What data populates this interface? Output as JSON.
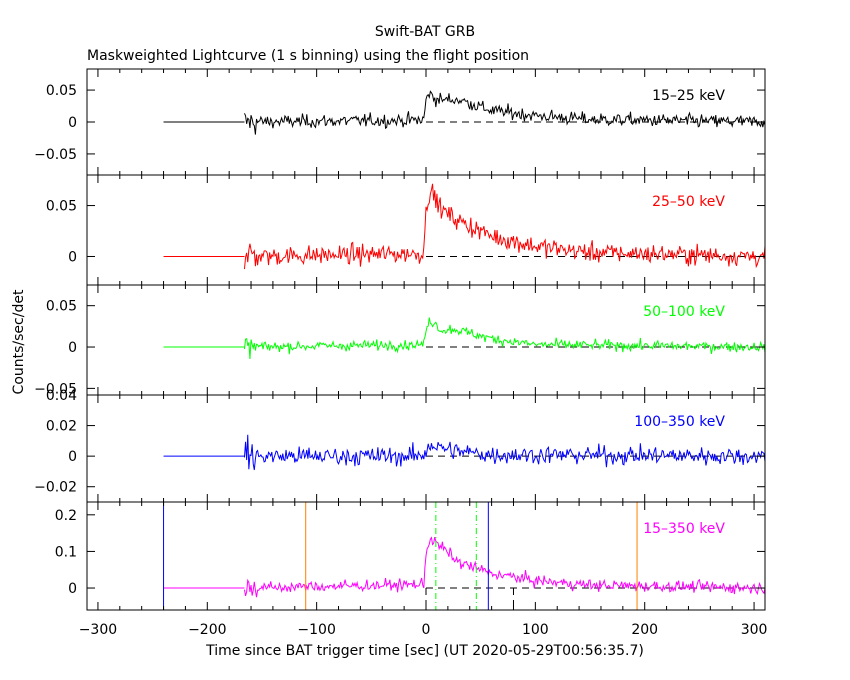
{
  "header": {
    "title": "Swift-BAT GRB",
    "subtitle": "Maskweighted Lightcurve (1 s binning) using the flight position"
  },
  "axes": {
    "xlabel": "Time since BAT trigger time [sec] (UT 2020-05-29T00:56:35.7)",
    "ylabel": "Counts/sec/det"
  },
  "chart_data": {
    "type": "line",
    "title": "Swift-BAT GRB",
    "subtitle": "Maskweighted Lightcurve (1 s binning) using the flight position",
    "xlabel": "Time since BAT trigger time [sec] (UT 2020-05-29T00:56:35.7)",
    "ylabel": "Counts/sec/det",
    "xlim": [
      -310,
      310
    ],
    "xticks": [
      -300,
      -200,
      -100,
      0,
      100,
      200,
      300
    ],
    "panels": [
      {
        "label": "15–25 keV",
        "color": "#000000",
        "ylim": [
          -0.083,
          0.083
        ],
        "yticks": [
          -0.05,
          0,
          0.05
        ],
        "ytick_labels": [
          "−0.05",
          "0",
          "0.05"
        ],
        "profile": [
          [
            -166,
            0.0
          ],
          [
            -2,
            0.003
          ],
          [
            0,
            0.035
          ],
          [
            3,
            0.045
          ],
          [
            10,
            0.035
          ],
          [
            30,
            0.035
          ],
          [
            60,
            0.018
          ],
          [
            100,
            0.01
          ],
          [
            150,
            0.004
          ],
          [
            310,
            0.0
          ]
        ],
        "noise": 0.012
      },
      {
        "label": "25–50 keV",
        "color": "#ff0000",
        "ylim": [
          -0.028,
          0.08
        ],
        "yticks": [
          0,
          0.05
        ],
        "ytick_labels": [
          "0",
          "0.05"
        ],
        "profile": [
          [
            -166,
            0.0
          ],
          [
            -2,
            0.003
          ],
          [
            0,
            0.05
          ],
          [
            4,
            0.065
          ],
          [
            15,
            0.045
          ],
          [
            30,
            0.035
          ],
          [
            60,
            0.02
          ],
          [
            100,
            0.01
          ],
          [
            150,
            0.004
          ],
          [
            310,
            0.0
          ]
        ],
        "noise": 0.011
      },
      {
        "label": "50–100 keV",
        "color": "#00ff00",
        "ylim": [
          -0.058,
          0.075
        ],
        "yticks": [
          -0.05,
          0,
          0.05
        ],
        "ytick_labels": [
          "−0.05",
          "0",
          "0.05"
        ],
        "profile": [
          [
            -166,
            0.0
          ],
          [
            -2,
            0.003
          ],
          [
            0,
            0.02
          ],
          [
            4,
            0.033
          ],
          [
            15,
            0.02
          ],
          [
            25,
            0.022
          ],
          [
            60,
            0.01
          ],
          [
            100,
            0.003
          ],
          [
            310,
            0.0
          ]
        ],
        "noise": 0.007
      },
      {
        "label": "100–350 keV",
        "color": "#0000ff",
        "ylim": [
          -0.03,
          0.04
        ],
        "yticks": [
          -0.02,
          0,
          0.02,
          0.04
        ],
        "ytick_labels": [
          "−0.02",
          "0",
          "0.02",
          "0.04"
        ],
        "profile": [
          [
            -166,
            0.0
          ],
          [
            -2,
            0.0
          ],
          [
            2,
            0.008
          ],
          [
            10,
            0.006
          ],
          [
            30,
            0.003
          ],
          [
            60,
            0.001
          ],
          [
            310,
            0.0
          ]
        ],
        "noise": 0.007
      },
      {
        "label": "15–350 keV",
        "color": "#ff00ff",
        "ylim": [
          -0.06,
          0.235
        ],
        "yticks": [
          0,
          0.1,
          0.2
        ],
        "ytick_labels": [
          "0",
          "0.1",
          "0.2"
        ],
        "profile": [
          [
            -166,
            0.0
          ],
          [
            -2,
            0.01
          ],
          [
            0,
            0.1
          ],
          [
            4,
            0.135
          ],
          [
            15,
            0.11
          ],
          [
            30,
            0.07
          ],
          [
            60,
            0.04
          ],
          [
            100,
            0.02
          ],
          [
            150,
            0.008
          ],
          [
            310,
            0.0
          ]
        ],
        "noise": 0.018
      }
    ],
    "pre_data_line": {
      "from": -240,
      "to": -166,
      "value": 0
    },
    "data_start": -166,
    "markers": [
      {
        "x": -240,
        "color": "#0000ff",
        "style": "solid"
      },
      {
        "x": -110,
        "color": "#ff8000",
        "style": "solid"
      },
      {
        "x": 57,
        "color": "#0000ff",
        "style": "solid"
      },
      {
        "x": 193,
        "color": "#ff8000",
        "style": "solid"
      },
      {
        "x": 9,
        "color": "#00ff00",
        "style": "dashdot"
      },
      {
        "x": 46,
        "color": "#00ff00",
        "style": "dashdot"
      },
      {
        "x": 0,
        "color": "#000000",
        "style": "dashed"
      },
      {
        "x": 80,
        "color": "#000000",
        "style": "dashed"
      }
    ]
  }
}
